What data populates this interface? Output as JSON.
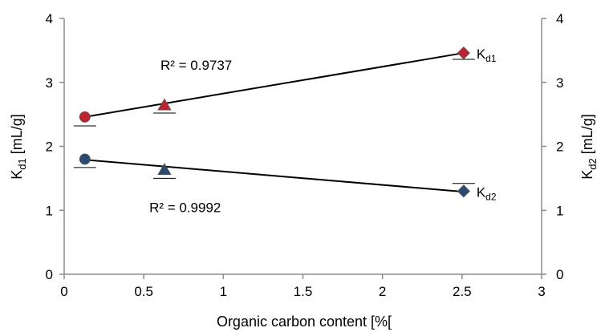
{
  "chart_data": {
    "type": "scatter",
    "title": "",
    "xlabel": "Organic carbon content [%[",
    "ylabel_left": {
      "main": "K",
      "sub": "d1",
      "unit": " [mL/g]"
    },
    "ylabel_right": {
      "main": "K",
      "sub": "d2",
      "unit": " [mL/g]"
    },
    "xlim": [
      0,
      3
    ],
    "ylim": [
      0,
      4
    ],
    "x_ticks": [
      "0",
      "0.5",
      "1",
      "1.5",
      "2",
      "2.5",
      "3"
    ],
    "y_ticks_left": [
      "0",
      "1",
      "2",
      "3",
      "4"
    ],
    "y_ticks_right": [
      "0",
      "1",
      "2",
      "3",
      "4"
    ],
    "grid": false,
    "series": [
      {
        "name": {
          "main": "K",
          "sub": "d1"
        },
        "color": "#c0232f",
        "points": [
          {
            "x": 0.13,
            "y": 2.46,
            "marker": "circle",
            "err": 0.14
          },
          {
            "x": 0.63,
            "y": 2.64,
            "marker": "triangle",
            "err": 0.12
          },
          {
            "x": 2.51,
            "y": 3.46,
            "marker": "diamond",
            "err": 0.1
          }
        ],
        "fit": {
          "x": [
            0.13,
            2.51
          ],
          "y": [
            2.46,
            3.46
          ]
        },
        "r2_label": "R² = 0.9737",
        "r2_pos": {
          "x": 0.83,
          "y": 3.2
        }
      },
      {
        "name": {
          "main": "K",
          "sub": "d2"
        },
        "color": "#2b4a73",
        "points": [
          {
            "x": 0.13,
            "y": 1.8,
            "marker": "circle",
            "err": 0.13
          },
          {
            "x": 0.63,
            "y": 1.63,
            "marker": "triangle",
            "err": 0.13
          },
          {
            "x": 2.51,
            "y": 1.3,
            "marker": "diamond",
            "err": 0.12
          }
        ],
        "fit": {
          "x": [
            0.13,
            2.51
          ],
          "y": [
            1.79,
            1.29
          ]
        },
        "r2_label": "R² = 0.9992",
        "r2_pos": {
          "x": 0.76,
          "y": 0.97
        }
      }
    ]
  }
}
